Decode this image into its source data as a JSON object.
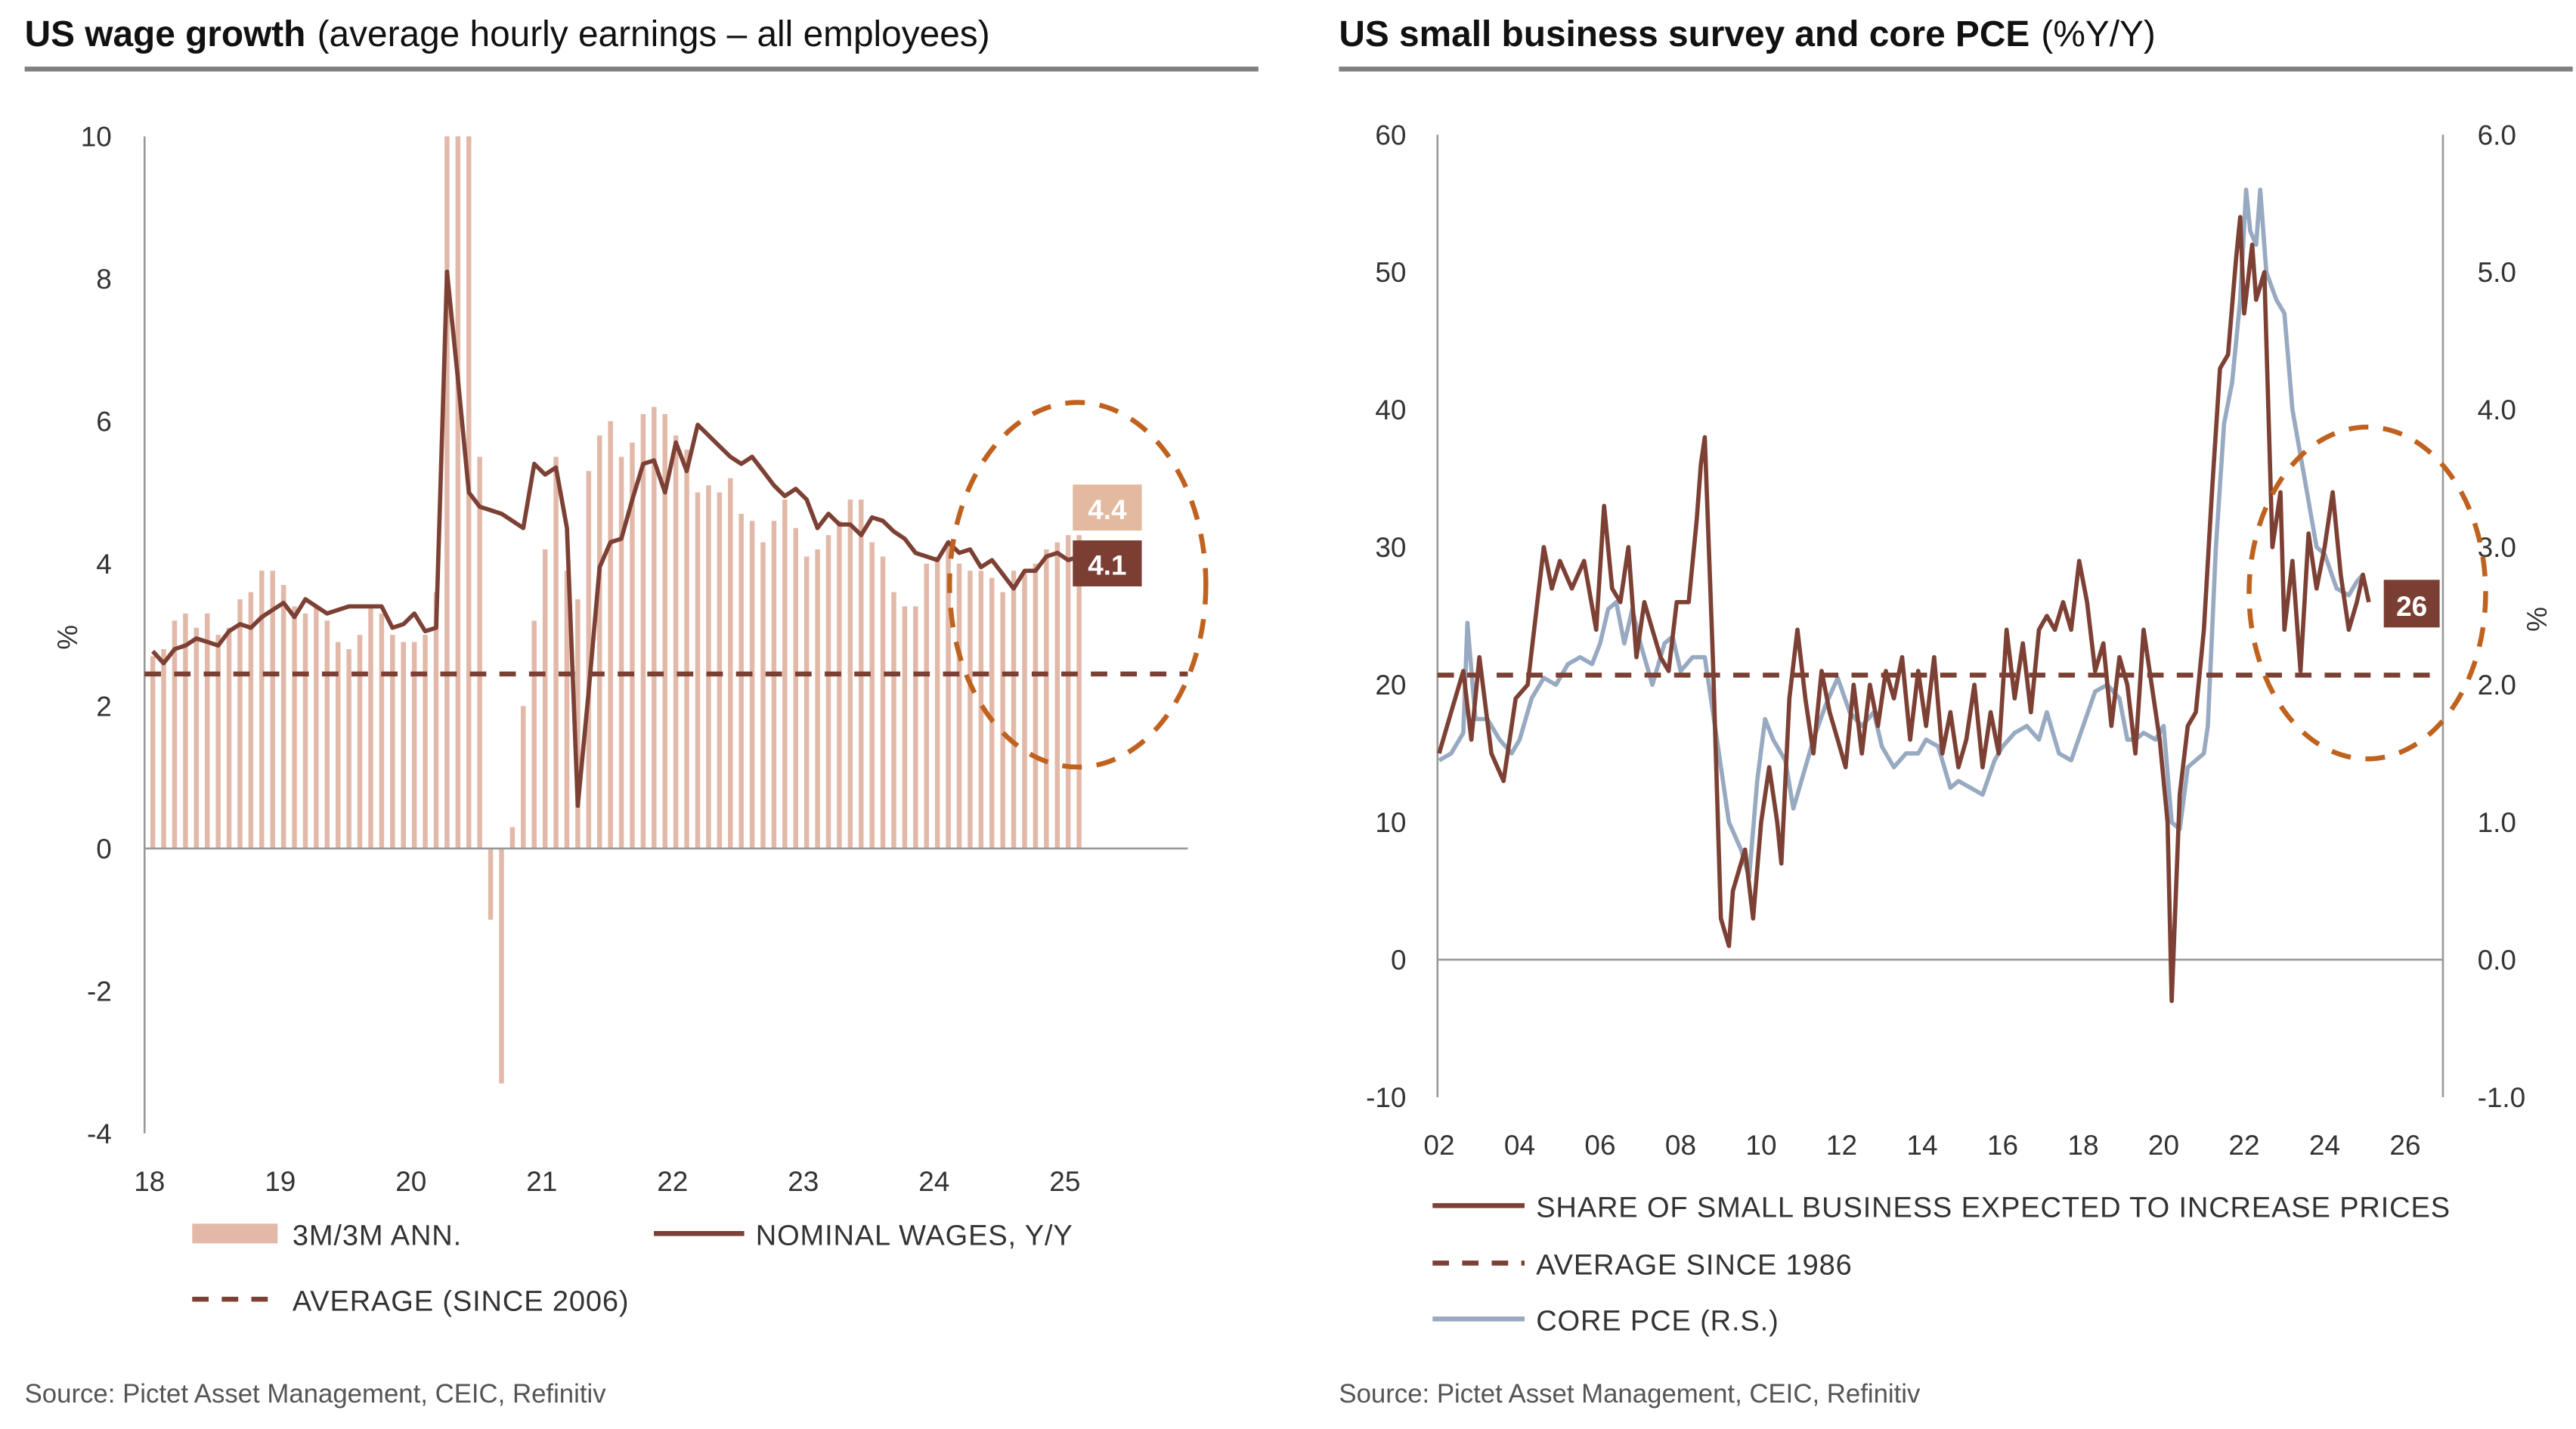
{
  "colors": {
    "bar": "#e2b9a9",
    "wage_line": "#7d4034",
    "average": "#7b3f33",
    "pce": "#98aac1",
    "highlight_circle": "#c0621f",
    "badge_light": "#e3b9a0",
    "badge_dark": "#7a3e33",
    "rule": "#808080"
  },
  "chart_data": [
    {
      "type": "bar",
      "title_bold": "US wage growth",
      "title_rest": "(average hourly earnings – all employees)",
      "ylabel": "%",
      "ylim": [
        -4,
        10
      ],
      "yticks": [
        "10",
        "8",
        "6",
        "4",
        "2",
        "0",
        "-2",
        "-4"
      ],
      "ytick_values": [
        10,
        8,
        6,
        4,
        2,
        0,
        -2,
        -4
      ],
      "xticks": [
        "18",
        "19",
        "20",
        "21",
        "22",
        "23",
        "24",
        "25"
      ],
      "xtick_years": [
        2018,
        2019,
        2020,
        2021,
        2022,
        2023,
        2024,
        2025
      ],
      "start_year": 2018,
      "series": [
        {
          "name": "3M/3M ANN.",
          "kind": "bar",
          "values": [
            2.7,
            2.8,
            3.2,
            3.3,
            3.1,
            3.3,
            3.0,
            3.1,
            3.5,
            3.6,
            3.9,
            3.9,
            3.7,
            3.4,
            3.3,
            3.4,
            3.2,
            2.9,
            2.8,
            3.0,
            3.4,
            3.3,
            3.0,
            2.9,
            2.9,
            3.0,
            3.6,
            10,
            10,
            10,
            5.5,
            -1.0,
            -3.3,
            0.3,
            2.0,
            3.2,
            4.2,
            5.5,
            3.9,
            3.5,
            5.3,
            5.8,
            6.0,
            5.5,
            5.7,
            6.1,
            6.2,
            6.1,
            5.8,
            5.6,
            5.0,
            5.1,
            5.0,
            5.2,
            4.7,
            4.6,
            4.3,
            4.6,
            4.9,
            4.5,
            4.1,
            4.2,
            4.4,
            4.6,
            4.9,
            4.9,
            4.3,
            4.1,
            3.6,
            3.4,
            3.4,
            4.0,
            4.1,
            4.3,
            4.0,
            3.9,
            3.9,
            3.8,
            3.6,
            3.9,
            3.9,
            4.0,
            4.2,
            4.3,
            4.4,
            4.4
          ]
        },
        {
          "name": "NOMINAL WAGES, Y/Y",
          "kind": "line",
          "values": [
            2.77,
            2.6,
            2.8,
            2.85,
            2.95,
            2.9,
            2.85,
            3.05,
            3.15,
            3.1,
            3.25,
            3.35,
            3.45,
            3.25,
            3.5,
            3.4,
            3.3,
            3.35,
            3.4,
            3.4,
            3.4,
            3.4,
            3.1,
            3.15,
            3.3,
            3.05,
            3.1,
            8.1,
            6.6,
            5.0,
            4.8,
            4.75,
            4.7,
            4.6,
            4.5,
            5.4,
            5.25,
            5.35,
            4.5,
            0.6,
            2.2,
            3.95,
            4.3,
            4.35,
            4.9,
            5.4,
            5.45,
            5.0,
            5.7,
            5.3,
            5.95,
            5.8,
            5.65,
            5.5,
            5.4,
            5.5,
            5.3,
            5.1,
            4.95,
            5.05,
            4.9,
            4.5,
            4.7,
            4.55,
            4.55,
            4.4,
            4.65,
            4.6,
            4.45,
            4.35,
            4.15,
            4.1,
            4.05,
            4.3,
            4.15,
            4.2,
            3.95,
            4.05,
            3.85,
            3.65,
            3.9,
            3.9,
            4.1,
            4.15,
            4.05,
            4.1
          ]
        },
        {
          "name": "AVERAGE (SINCE 2006)",
          "kind": "hline",
          "value": 2.45
        }
      ],
      "annotations": [
        {
          "text": "4.4",
          "value": 4.4,
          "style": "light"
        },
        {
          "text": "4.1",
          "value": 4.1,
          "style": "dark"
        }
      ],
      "source": "Source: Pictet Asset Management, CEIC, Refinitiv"
    },
    {
      "type": "line",
      "title_bold": "US small business survey and core PCE",
      "title_rest": "(%Y/Y)",
      "ylim": [
        -10,
        60
      ],
      "ylim_right": [
        -1.0,
        6.0
      ],
      "ylabel_right": "%",
      "yticks": [
        "60",
        "50",
        "40",
        "30",
        "20",
        "10",
        "0",
        "-10"
      ],
      "ytick_values": [
        60,
        50,
        40,
        30,
        20,
        10,
        0,
        -10
      ],
      "yticks_right": [
        "6.0",
        "5.0",
        "4.0",
        "3.0",
        "2.0",
        "1.0",
        "0.0",
        "-1.0"
      ],
      "xticks": [
        "02",
        "04",
        "06",
        "08",
        "10",
        "12",
        "14",
        "16",
        "18",
        "20",
        "22",
        "24",
        "26"
      ],
      "xtick_years": [
        2002,
        2004,
        2006,
        2008,
        2010,
        2012,
        2014,
        2016,
        2018,
        2020,
        2022,
        2024,
        2026
      ],
      "series": [
        {
          "name": "SHARE OF SMALL BUSINESS EXPECTED TO INCREASE PRICES",
          "axis": "left",
          "x": [
            2002.0,
            2002.3,
            2002.6,
            2002.8,
            2003.0,
            2003.3,
            2003.6,
            2003.9,
            2004.2,
            2004.4,
            2004.6,
            2004.8,
            2005.0,
            2005.3,
            2005.6,
            2005.9,
            2006.1,
            2006.3,
            2006.5,
            2006.7,
            2006.9,
            2007.1,
            2007.3,
            2007.5,
            2007.7,
            2007.9,
            2008.2,
            2008.4,
            2008.5,
            2008.6,
            2008.8,
            2009.0,
            2009.2,
            2009.3,
            2009.6,
            2009.8,
            2010.0,
            2010.2,
            2010.4,
            2010.5,
            2010.7,
            2010.9,
            2011.1,
            2011.3,
            2011.5,
            2011.7,
            2011.9,
            2012.1,
            2012.3,
            2012.5,
            2012.7,
            2012.9,
            2013.1,
            2013.3,
            2013.5,
            2013.7,
            2013.9,
            2014.1,
            2014.3,
            2014.5,
            2014.7,
            2014.9,
            2015.1,
            2015.3,
            2015.5,
            2015.7,
            2015.9,
            2016.1,
            2016.3,
            2016.5,
            2016.7,
            2016.9,
            2017.1,
            2017.3,
            2017.5,
            2017.7,
            2017.9,
            2018.1,
            2018.3,
            2018.5,
            2018.7,
            2018.9,
            2019.1,
            2019.3,
            2019.5,
            2019.7,
            2019.9,
            2020.1,
            2020.2,
            2020.4,
            2020.6,
            2020.8,
            2021.0,
            2021.2,
            2021.4,
            2021.6,
            2021.8,
            2021.9,
            2022.0,
            2022.2,
            2022.3,
            2022.5,
            2022.7,
            2022.9,
            2023.0,
            2023.2,
            2023.4,
            2023.6,
            2023.8,
            2024.0,
            2024.2,
            2024.4,
            2024.6,
            2024.8,
            2024.95,
            2025.1
          ],
          "values": [
            15,
            18,
            21,
            16,
            22,
            15,
            13,
            19,
            20,
            25,
            30,
            27,
            29,
            27,
            29,
            24,
            33,
            27,
            26,
            30,
            22,
            26,
            24,
            22,
            21,
            26,
            26,
            32,
            36,
            38,
            22,
            3,
            1,
            5,
            8,
            3,
            10,
            14,
            10,
            7,
            19,
            24,
            19,
            15,
            21,
            18,
            16,
            14,
            20,
            15,
            20,
            17,
            21,
            19,
            22,
            16,
            21,
            17,
            22,
            15,
            18,
            14,
            16,
            20,
            14,
            18,
            15,
            24,
            19,
            23,
            18,
            24,
            25,
            24,
            26,
            24,
            29,
            26,
            21,
            23,
            17,
            22,
            20,
            15,
            24,
            20,
            16,
            10,
            -3,
            12,
            17,
            18,
            24,
            34,
            43,
            44,
            51,
            54,
            47,
            52,
            48,
            50,
            30,
            34,
            24,
            29,
            21,
            31,
            27,
            30,
            34,
            28,
            24,
            26,
            28,
            26
          ]
        },
        {
          "name": "AVERAGE SINCE 1986",
          "axis": "left",
          "kind": "hline",
          "value": 20.7
        },
        {
          "name": "CORE PCE (R.S.)",
          "axis": "right",
          "x": [
            2002.0,
            2002.3,
            2002.6,
            2002.7,
            2002.9,
            2003.2,
            2003.5,
            2003.8,
            2004.0,
            2004.3,
            2004.6,
            2004.9,
            2005.2,
            2005.5,
            2005.8,
            2006.0,
            2006.2,
            2006.4,
            2006.6,
            2006.8,
            2007.0,
            2007.3,
            2007.6,
            2007.8,
            2008.0,
            2008.3,
            2008.6,
            2008.9,
            2009.2,
            2009.5,
            2009.7,
            2009.9,
            2010.1,
            2010.3,
            2010.6,
            2010.8,
            2011.0,
            2011.3,
            2011.6,
            2011.9,
            2012.2,
            2012.5,
            2012.8,
            2013.0,
            2013.3,
            2013.6,
            2013.9,
            2014.1,
            2014.4,
            2014.7,
            2014.9,
            2015.2,
            2015.5,
            2015.8,
            2016.0,
            2016.3,
            2016.6,
            2016.9,
            2017.1,
            2017.4,
            2017.7,
            2018.0,
            2018.3,
            2018.6,
            2018.9,
            2019.1,
            2019.3,
            2019.5,
            2019.8,
            2020.0,
            2020.2,
            2020.4,
            2020.6,
            2020.8,
            2021.0,
            2021.1,
            2021.3,
            2021.5,
            2021.7,
            2021.9,
            2022.05,
            2022.15,
            2022.3,
            2022.4,
            2022.55,
            2022.8,
            2023.0,
            2023.2,
            2023.5,
            2023.8,
            2024.0,
            2024.3,
            2024.6,
            2024.8,
            2024.95
          ],
          "values": [
            1.45,
            1.5,
            1.65,
            2.45,
            1.75,
            1.75,
            1.6,
            1.5,
            1.6,
            1.9,
            2.05,
            2.0,
            2.15,
            2.2,
            2.15,
            2.3,
            2.55,
            2.6,
            2.3,
            2.55,
            2.3,
            2.0,
            2.3,
            2.35,
            2.1,
            2.2,
            2.2,
            1.6,
            1.0,
            0.8,
            0.6,
            1.3,
            1.75,
            1.6,
            1.45,
            1.1,
            1.3,
            1.6,
            1.85,
            2.05,
            1.8,
            1.7,
            1.8,
            1.55,
            1.4,
            1.5,
            1.5,
            1.6,
            1.55,
            1.25,
            1.3,
            1.25,
            1.2,
            1.45,
            1.55,
            1.65,
            1.7,
            1.6,
            1.8,
            1.5,
            1.45,
            1.7,
            1.95,
            2.0,
            1.9,
            1.6,
            1.6,
            1.65,
            1.6,
            1.7,
            1.0,
            0.95,
            1.4,
            1.45,
            1.5,
            1.7,
            3.0,
            3.9,
            4.2,
            4.8,
            5.6,
            5.3,
            5.2,
            5.6,
            5.0,
            4.8,
            4.7,
            4.0,
            3.5,
            3.0,
            2.95,
            2.7,
            2.65,
            2.75,
            2.8
          ]
        }
      ],
      "annotations": [
        {
          "text": "26",
          "value": 26,
          "style": "dark"
        }
      ],
      "source": "Source: Pictet Asset Management, CEIC, Refinitiv"
    }
  ]
}
